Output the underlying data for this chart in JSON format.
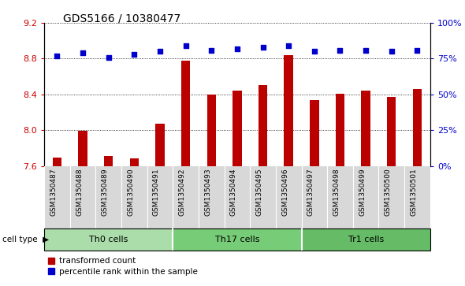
{
  "title": "GDS5166 / 10380477",
  "categories": [
    "GSM1350487",
    "GSM1350488",
    "GSM1350489",
    "GSM1350490",
    "GSM1350491",
    "GSM1350492",
    "GSM1350493",
    "GSM1350494",
    "GSM1350495",
    "GSM1350496",
    "GSM1350497",
    "GSM1350498",
    "GSM1350499",
    "GSM1350500",
    "GSM1350501"
  ],
  "bar_values": [
    7.69,
    7.99,
    7.71,
    7.68,
    8.07,
    8.78,
    8.4,
    8.44,
    8.5,
    8.84,
    8.34,
    8.41,
    8.44,
    8.37,
    8.46
  ],
  "dot_values": [
    77,
    79,
    76,
    78,
    80,
    84,
    81,
    82,
    83,
    84,
    80,
    81,
    81,
    80,
    81
  ],
  "bar_color": "#bb0000",
  "dot_color": "#0000cc",
  "ylim_left": [
    7.6,
    9.2
  ],
  "ylim_right": [
    0,
    100
  ],
  "yticks_left": [
    7.6,
    8.0,
    8.4,
    8.8,
    9.2
  ],
  "yticks_right": [
    0,
    25,
    50,
    75,
    100
  ],
  "ytick_labels_right": [
    "0%",
    "25%",
    "50%",
    "75%",
    "100%"
  ],
  "cell_groups": [
    {
      "label": "Th0 cells",
      "start": 0,
      "end": 5,
      "color": "#aaddaa"
    },
    {
      "label": "Th17 cells",
      "start": 5,
      "end": 10,
      "color": "#77cc77"
    },
    {
      "label": "Tr1 cells",
      "start": 10,
      "end": 15,
      "color": "#66bb66"
    }
  ],
  "xlabel_cell_type": "cell type",
  "legend_bar_label": "transformed count",
  "legend_dot_label": "percentile rank within the sample",
  "bg_color": "#d8d8d8",
  "tick_label_color_left": "#cc0000",
  "tick_label_color_right": "#0000cc",
  "grid_color": "black",
  "bar_bottom": 7.6
}
